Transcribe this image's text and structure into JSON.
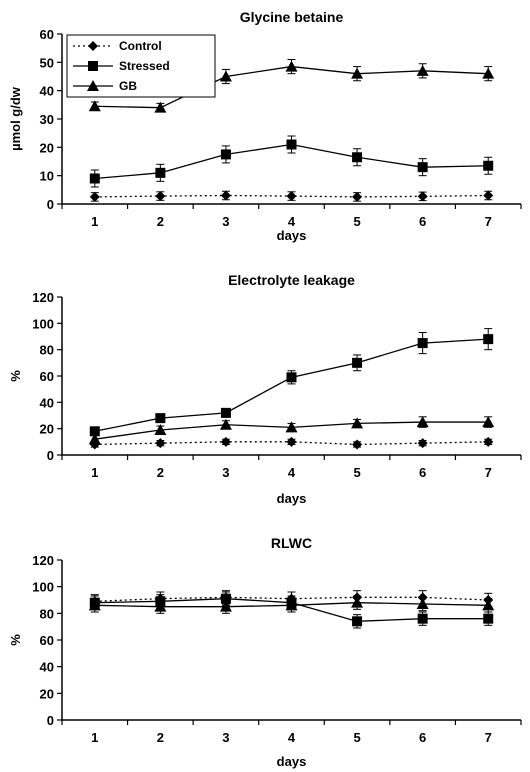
{
  "chart_data": [
    {
      "type": "line",
      "title": "Glycine betaine",
      "xlabel": "days",
      "ylabel": "µmol g/dw",
      "x": [
        1,
        2,
        3,
        4,
        5,
        6,
        7
      ],
      "ylim": [
        0,
        60
      ],
      "yticks": [
        0,
        10,
        20,
        30,
        40,
        50,
        60
      ],
      "legend": "top-left",
      "grid": false,
      "series": [
        {
          "name": "Control",
          "marker": "diamond",
          "dash": "dotted",
          "values": [
            2.5,
            2.8,
            3,
            2.8,
            2.5,
            2.7,
            3
          ],
          "errors": [
            1.5,
            1.5,
            1.5,
            1.5,
            1.5,
            1.5,
            1.5
          ]
        },
        {
          "name": "Stressed",
          "marker": "square",
          "dash": "solid",
          "values": [
            9,
            11,
            17.5,
            21,
            16.5,
            13,
            13.5
          ],
          "errors": [
            3,
            3,
            3,
            3,
            3,
            3,
            3
          ]
        },
        {
          "name": "GB",
          "marker": "triangle",
          "dash": "solid",
          "values": [
            34.5,
            34,
            45,
            48.5,
            46,
            47,
            46
          ],
          "errors": [
            1.5,
            1.5,
            2.5,
            2.5,
            2.5,
            2.5,
            2.5
          ]
        }
      ]
    },
    {
      "type": "line",
      "title": "Electrolyte leakage",
      "xlabel": "days",
      "ylabel": "%",
      "x": [
        1,
        2,
        3,
        4,
        5,
        6,
        7
      ],
      "ylim": [
        0,
        120
      ],
      "yticks": [
        0,
        20,
        40,
        60,
        80,
        100,
        120
      ],
      "grid": false,
      "series": [
        {
          "marker": "diamond",
          "dash": "dotted",
          "values": [
            8,
            9,
            10,
            10,
            8,
            9,
            10
          ],
          "errors": [
            2,
            2,
            2,
            2,
            2,
            2,
            2
          ]
        },
        {
          "marker": "square",
          "dash": "solid",
          "values": [
            18,
            28,
            32,
            59,
            70,
            85,
            88
          ],
          "errors": [
            2,
            2,
            3,
            5,
            6,
            8,
            8
          ]
        },
        {
          "marker": "triangle",
          "dash": "solid",
          "values": [
            12,
            19,
            23,
            21,
            24,
            25,
            25
          ],
          "errors": [
            3,
            3,
            3,
            3,
            3,
            4,
            4
          ]
        }
      ]
    },
    {
      "type": "line",
      "title": "RLWC",
      "xlabel": "days",
      "ylabel": "%",
      "x": [
        1,
        2,
        3,
        4,
        5,
        6,
        7
      ],
      "ylim": [
        0,
        120
      ],
      "yticks": [
        0,
        20,
        40,
        60,
        80,
        100,
        120
      ],
      "grid": false,
      "series": [
        {
          "marker": "diamond",
          "dash": "dotted",
          "values": [
            89,
            91,
            92,
            91,
            92,
            92,
            90
          ],
          "errors": [
            5,
            5,
            5,
            5,
            5,
            5,
            5
          ]
        },
        {
          "marker": "square",
          "dash": "solid",
          "values": [
            88,
            89,
            91,
            88,
            74,
            76,
            76
          ],
          "errors": [
            5,
            5,
            5,
            5,
            5,
            5,
            5
          ]
        },
        {
          "marker": "triangle",
          "dash": "solid",
          "values": [
            86,
            85,
            85,
            86,
            88,
            87,
            86
          ],
          "errors": [
            5,
            5,
            5,
            5,
            5,
            5,
            5
          ]
        }
      ]
    }
  ]
}
